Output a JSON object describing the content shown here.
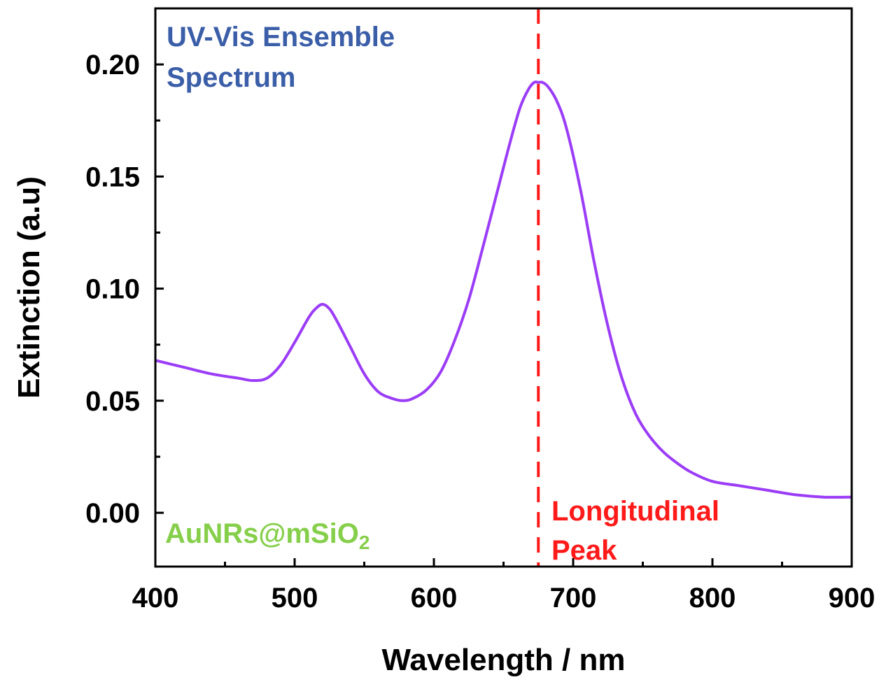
{
  "chart_data": {
    "type": "line",
    "xlabel": "Wavelength / nm",
    "ylabel": "Extinction (a.u)",
    "xlim": [
      400,
      900
    ],
    "ylim": [
      -0.024,
      0.225
    ],
    "x_ticks": [
      400,
      500,
      600,
      700,
      800,
      900
    ],
    "x_tick_labels": [
      "400",
      "500",
      "600",
      "700",
      "800",
      "900"
    ],
    "y_ticks": [
      0.0,
      0.05,
      0.1,
      0.15,
      0.2
    ],
    "y_tick_labels": [
      "0.00",
      "0.05",
      "0.10",
      "0.15",
      "0.20"
    ],
    "grid": false,
    "series": [
      {
        "color": "#9b3cf7",
        "x": [
          400,
          420,
          440,
          460,
          470,
          480,
          490,
          500,
          510,
          515,
          520,
          525,
          530,
          540,
          550,
          560,
          570,
          578,
          585,
          595,
          605,
          615,
          625,
          635,
          645,
          655,
          662,
          668,
          672,
          675,
          678,
          682,
          688,
          695,
          705,
          715,
          725,
          735,
          745,
          755,
          765,
          775,
          785,
          800,
          820,
          840,
          860,
          880,
          900
        ],
        "y": [
          0.068,
          0.065,
          0.062,
          0.06,
          0.059,
          0.06,
          0.066,
          0.076,
          0.087,
          0.091,
          0.093,
          0.091,
          0.086,
          0.074,
          0.062,
          0.054,
          0.051,
          0.05,
          0.051,
          0.055,
          0.063,
          0.077,
          0.095,
          0.118,
          0.142,
          0.166,
          0.181,
          0.189,
          0.192,
          0.192,
          0.192,
          0.19,
          0.184,
          0.172,
          0.145,
          0.112,
          0.083,
          0.06,
          0.044,
          0.034,
          0.027,
          0.022,
          0.018,
          0.014,
          0.012,
          0.01,
          0.008,
          0.007,
          0.007
        ]
      }
    ],
    "reference_line": {
      "x": 675,
      "color": "#ff1a1a",
      "style": "dashed"
    },
    "annotations": {
      "title_line1": "UV-Vis Ensemble",
      "title_line2": "Spectrum",
      "sample_main": "AuNRs@mSiO",
      "sample_sub": "2",
      "peak_line1": "Longitudinal",
      "peak_line2": "Peak"
    },
    "colors": {
      "title": "#3b5ea8",
      "sample": "#86cf4a",
      "peak": "#ff1a1a",
      "curve": "#9b3cf7",
      "axis": "#000000"
    }
  }
}
